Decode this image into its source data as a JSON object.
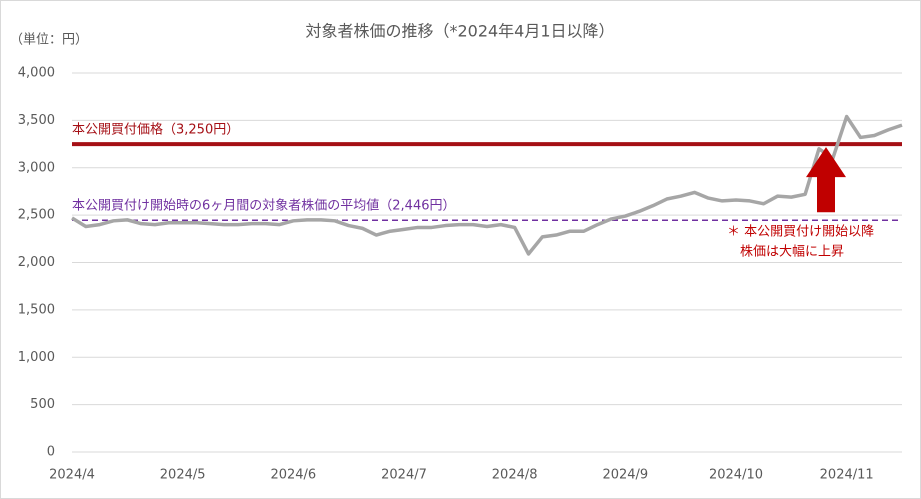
{
  "chart_data": {
    "type": "line",
    "title": "対象者株価の推移（*2024年4月1日以降）",
    "unit_label": "（単位：円）",
    "categories": [
      "2024/4",
      null,
      null,
      null,
      null,
      null,
      null,
      null,
      "2024/5",
      null,
      null,
      null,
      null,
      null,
      null,
      null,
      "2024/6",
      null,
      null,
      null,
      null,
      null,
      null,
      null,
      "2024/7",
      null,
      null,
      null,
      null,
      null,
      null,
      null,
      "2024/8",
      null,
      null,
      null,
      null,
      null,
      null,
      null,
      "2024/9",
      null,
      null,
      null,
      null,
      null,
      null,
      null,
      "2024/10",
      null,
      null,
      null,
      null,
      null,
      null,
      null,
      "2024/11",
      null,
      null,
      null,
      null
    ],
    "series": [
      {
        "name": "株価",
        "color": "#a6a6a6",
        "values": [
          2470,
          2380,
          2400,
          2440,
          2450,
          2410,
          2400,
          2420,
          2420,
          2420,
          2410,
          2400,
          2400,
          2410,
          2410,
          2400,
          2440,
          2450,
          2450,
          2440,
          2390,
          2360,
          2290,
          2330,
          2350,
          2370,
          2370,
          2390,
          2400,
          2400,
          2380,
          2400,
          2370,
          2090,
          2270,
          2290,
          2330,
          2330,
          2400,
          2460,
          2490,
          2540,
          2600,
          2670,
          2700,
          2740,
          2680,
          2650,
          2660,
          2650,
          2620,
          2700,
          2690,
          2720,
          3200,
          3100,
          3540,
          3320,
          3340,
          3400,
          3450
        ]
      }
    ],
    "ylim": [
      0,
      4000
    ],
    "yticks": [
      0,
      500,
      {
        "value": 1000,
        "label": "1,000"
      },
      {
        "value": 1500,
        "label": "1,500"
      },
      {
        "value": 2000,
        "label": "2,000"
      },
      {
        "value": 2500,
        "label": "2,500"
      },
      {
        "value": 3000,
        "label": "3,000"
      },
      {
        "value": 3500,
        "label": "3,500"
      },
      {
        "value": 4000,
        "label": "4,000"
      }
    ],
    "grid": true,
    "reference_lines": [
      {
        "label": "本公開買付価格（3,250円）",
        "value": 3250,
        "color": "#a50f15",
        "dashed": false
      },
      {
        "label": "本公開買付け開始時の6ヶ月間の対象者株価の平均値（2,446円）",
        "value": 2446,
        "color": "#7030a0",
        "dashed": true
      }
    ],
    "annotation": [
      "＊ 本公開買付け開始以降",
      "株価は大幅に上昇"
    ],
    "arrow_color": "#c00000"
  }
}
